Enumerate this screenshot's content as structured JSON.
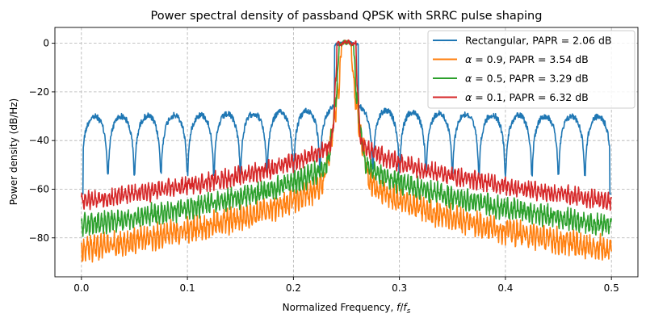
{
  "chart_data": {
    "type": "line",
    "title": "Power spectral density of passband QPSK with SRRC pulse shaping",
    "xlabel_main": "Normalized Frequency, ",
    "xlabel_math_f": "f",
    "xlabel_math_slash": "/",
    "xlabel_math_fs": "f",
    "xlabel_math_sub": "s",
    "ylabel": "Power density (dB/Hz)",
    "xlim": [
      -0.025,
      0.525
    ],
    "ylim": [
      -96,
      6.5
    ],
    "grid": true,
    "legend_position": "top-right",
    "x_ticks": [
      0.0,
      0.1,
      0.2,
      0.3,
      0.4,
      0.5
    ],
    "x_tick_labels": [
      "0.0",
      "0.1",
      "0.2",
      "0.3",
      "0.4",
      "0.5"
    ],
    "y_ticks": [
      0,
      -20,
      -40,
      -60,
      -80
    ],
    "y_tick_labels": [
      "0",
      "−20",
      "−40",
      "−60",
      "−80"
    ],
    "carrier_frequency": 0.25,
    "symbol_rate": 0.025,
    "series": [
      {
        "name": "Rectangular, PAPR = 2.06 dB",
        "legend_prefix": "",
        "legend_suffix": "Rectangular, PAPR = 2.06 dB",
        "color": "#1f77b4",
        "shape": "rectangular",
        "sidelobe_peak_db": -26,
        "null_depth_db": -54,
        "edge_value_db": -62
      },
      {
        "name": "alpha = 0.9, PAPR = 3.54 dB",
        "legend_prefix": "α",
        "legend_suffix": " = 0.9, PAPR = 3.54 dB",
        "color": "#ff7f0e",
        "shape": "srrc",
        "alpha": 0.9,
        "floor_edge_db": -85,
        "floor_near_db": -55,
        "ripple_db": 3.5
      },
      {
        "name": "alpha = 0.5, PAPR = 3.29 dB",
        "legend_prefix": "α",
        "legend_suffix": " = 0.5, PAPR = 3.29 dB",
        "color": "#2ca02c",
        "shape": "srrc",
        "alpha": 0.5,
        "floor_edge_db": -75,
        "floor_near_db": -48,
        "ripple_db": 3.0
      },
      {
        "name": "alpha = 0.1, PAPR = 6.32 dB",
        "legend_prefix": "α",
        "legend_suffix": " = 0.1, PAPR = 6.32 dB",
        "color": "#d62728",
        "shape": "srrc",
        "alpha": 0.1,
        "floor_edge_db": -65,
        "floor_near_db": -40,
        "ripple_db": 2.5
      }
    ]
  }
}
